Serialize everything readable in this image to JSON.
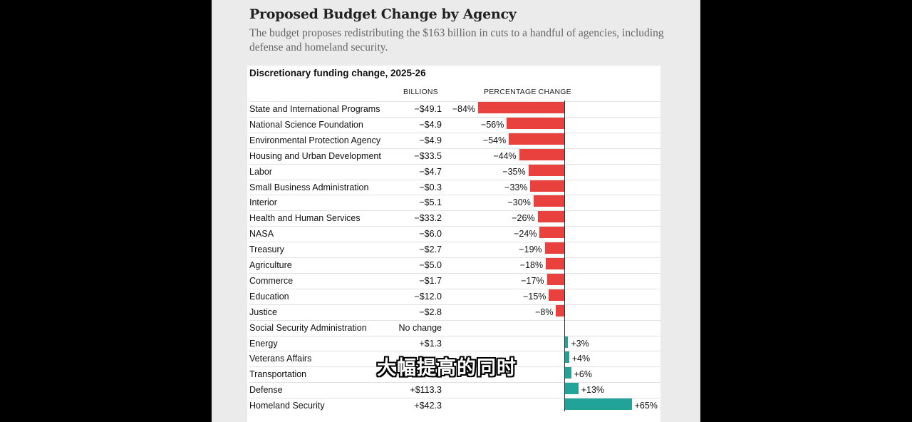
{
  "header": {
    "title": "Proposed Budget Change by Agency",
    "subtitle": "The budget proposes redistributing the $163 billion in cuts to a handful of agencies, including defense and homeland security."
  },
  "caption": "大幅提高的同时",
  "chart_data": {
    "type": "bar",
    "orientation": "horizontal",
    "title": "Discretionary funding change, 2025-26",
    "columns": [
      "BILLIONS",
      "PERCENTAGE CHANGE"
    ],
    "pct_range": [
      -84,
      65
    ],
    "rows": [
      {
        "agency": "State and International Programs",
        "billions": "−$49.1",
        "pct": -84,
        "pct_label": "−84%"
      },
      {
        "agency": "National Science Foundation",
        "billions": "−$4.9",
        "pct": -56,
        "pct_label": "−56%"
      },
      {
        "agency": "Environmental Protection Agency",
        "billions": "−$4.9",
        "pct": -54,
        "pct_label": "−54%"
      },
      {
        "agency": "Housing and Urban Development",
        "billions": "−$33.5",
        "pct": -44,
        "pct_label": "−44%"
      },
      {
        "agency": "Labor",
        "billions": "−$4.7",
        "pct": -35,
        "pct_label": "−35%"
      },
      {
        "agency": "Small Business Administration",
        "billions": "−$0.3",
        "pct": -33,
        "pct_label": "−33%"
      },
      {
        "agency": "Interior",
        "billions": "−$5.1",
        "pct": -30,
        "pct_label": "−30%"
      },
      {
        "agency": "Health and Human Services",
        "billions": "−$33.2",
        "pct": -26,
        "pct_label": "−26%"
      },
      {
        "agency": "NASA",
        "billions": "−$6.0",
        "pct": -24,
        "pct_label": "−24%"
      },
      {
        "agency": "Treasury",
        "billions": "−$2.7",
        "pct": -19,
        "pct_label": "−19%"
      },
      {
        "agency": "Agriculture",
        "billions": "−$5.0",
        "pct": -18,
        "pct_label": "−18%"
      },
      {
        "agency": "Commerce",
        "billions": "−$1.7",
        "pct": -17,
        "pct_label": "−17%"
      },
      {
        "agency": "Education",
        "billions": "−$12.0",
        "pct": -15,
        "pct_label": "−15%"
      },
      {
        "agency": "Justice",
        "billions": "−$2.8",
        "pct": -8,
        "pct_label": "−8%"
      },
      {
        "agency": "Social Security Administration",
        "billions": "No change",
        "pct": 0,
        "pct_label": ""
      },
      {
        "agency": "Energy",
        "billions": "+$1.3",
        "pct": 3,
        "pct_label": "+3%"
      },
      {
        "agency": "Veterans Affairs",
        "billions": "",
        "pct": 4,
        "pct_label": "+4%"
      },
      {
        "agency": "Transportation",
        "billions": "",
        "pct": 6,
        "pct_label": "+6%"
      },
      {
        "agency": "Defense",
        "billions": "+$113.3",
        "pct": 13,
        "pct_label": "+13%"
      },
      {
        "agency": "Homeland Security",
        "billions": "+$42.3",
        "pct": 65,
        "pct_label": "+65%"
      }
    ]
  }
}
